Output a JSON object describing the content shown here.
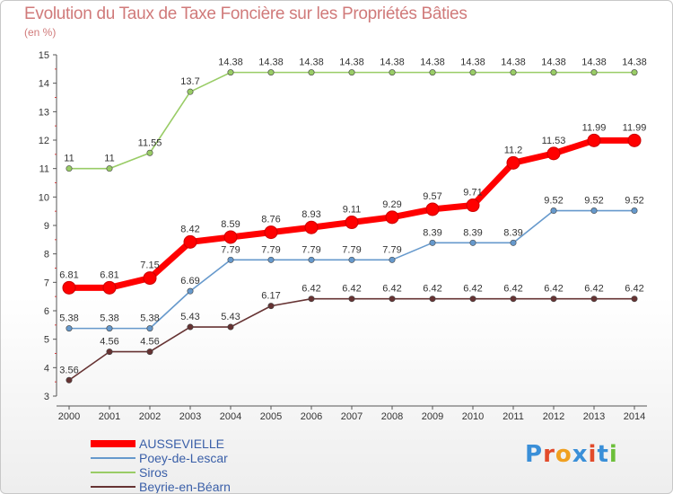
{
  "title": "Evolution du Taux de Taxe Foncière sur les Propriétés Bâties",
  "unit_label": "(en %)",
  "logo_text": "Proxiti",
  "chart_data": {
    "type": "line",
    "x": [
      "2000",
      "2001",
      "2002",
      "2003",
      "2004",
      "2005",
      "2006",
      "2007",
      "2008",
      "2009",
      "2010",
      "2011",
      "2012",
      "2013",
      "2014"
    ],
    "ylim": [
      3,
      15
    ],
    "yticks": [
      3,
      4,
      5,
      6,
      7,
      8,
      9,
      10,
      11,
      12,
      13,
      14,
      15
    ],
    "grid": false,
    "legend_position": "bottom-left",
    "series": [
      {
        "name": "AUSSEVIELLE",
        "color": "#ff0000",
        "values": [
          6.81,
          6.81,
          7.15,
          8.42,
          8.59,
          8.76,
          8.93,
          9.11,
          9.29,
          9.57,
          9.71,
          11.2,
          11.53,
          11.99,
          11.99
        ],
        "labels": [
          "6.81",
          "6.81",
          "7.15",
          "8.42",
          "8.59",
          "8.76",
          "8.93",
          "9.11",
          "9.29",
          "9.57",
          "9.71",
          "11.2",
          "11.53",
          "11.99",
          "11.99"
        ]
      },
      {
        "name": "Poey-de-Lescar",
        "color": "#6699cc",
        "values": [
          5.38,
          5.38,
          5.38,
          6.69,
          7.79,
          7.79,
          7.79,
          7.79,
          7.79,
          8.39,
          8.39,
          8.39,
          9.52,
          9.52,
          9.52
        ],
        "labels": [
          "5.38",
          "5.38",
          "5.38",
          "6.69",
          "7.79",
          "7.79",
          "7.79",
          "7.79",
          "7.79",
          "8.39",
          "8.39",
          "8.39",
          "9.52",
          "9.52",
          "9.52"
        ]
      },
      {
        "name": "Siros",
        "color": "#99cc66",
        "values": [
          11,
          11,
          11.55,
          13.7,
          14.38,
          14.38,
          14.38,
          14.38,
          14.38,
          14.38,
          14.38,
          14.38,
          14.38,
          14.38,
          14.38
        ],
        "labels": [
          "11",
          "11",
          "11.55",
          "13.7",
          "14.38",
          "14.38",
          "14.38",
          "14.38",
          "14.38",
          "14.38",
          "14.38",
          "14.38",
          "14.38",
          "14.38",
          "14.38"
        ]
      },
      {
        "name": "Beyrie-en-Béarn",
        "color": "#663333",
        "values": [
          3.56,
          4.56,
          4.56,
          5.43,
          5.43,
          6.17,
          6.42,
          6.42,
          6.42,
          6.42,
          6.42,
          6.42,
          6.42,
          6.42,
          6.42
        ],
        "labels": [
          "3.56",
          "4.56",
          "4.56",
          "5.43",
          "5.43",
          "6.17",
          "6.42",
          "6.42",
          "6.42",
          "6.42",
          "6.42",
          "6.42",
          "6.42",
          "6.42",
          "6.42"
        ]
      }
    ]
  }
}
